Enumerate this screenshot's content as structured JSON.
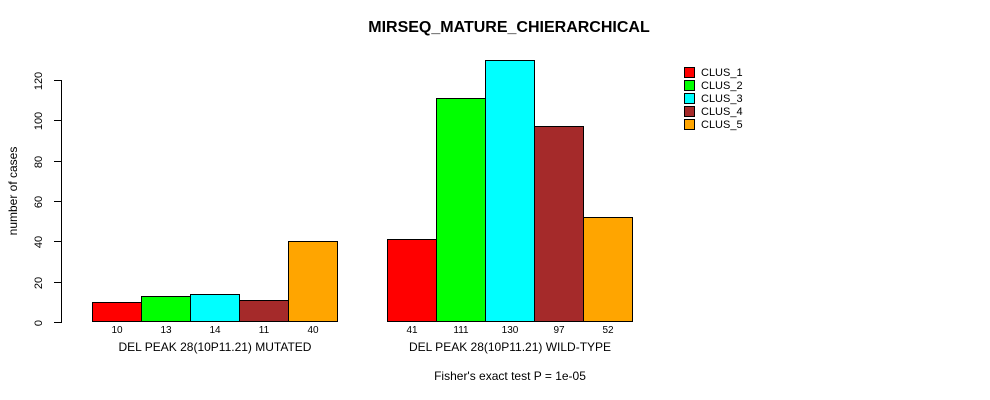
{
  "chart_data": {
    "type": "bar",
    "title": "MIRSEQ_MATURE_CHIERARCHICAL",
    "xlabel": "",
    "ylabel": "number of cases",
    "ylim": [
      0,
      130
    ],
    "yticks": [
      0,
      20,
      40,
      60,
      80,
      100,
      120
    ],
    "grid": false,
    "legend_position": "top-right",
    "bar_border_color": "#000000",
    "categories": [
      "DEL PEAK 28(10P11.21) MUTATED",
      "DEL PEAK 28(10P11.21) WILD-TYPE"
    ],
    "series": [
      {
        "name": "CLUS_1",
        "color": "#FF0000",
        "values": [
          10,
          41
        ]
      },
      {
        "name": "CLUS_2",
        "color": "#00FF00",
        "values": [
          13,
          111
        ]
      },
      {
        "name": "CLUS_3",
        "color": "#00FFFF",
        "values": [
          14,
          130
        ]
      },
      {
        "name": "CLUS_4",
        "color": "#A52A2A",
        "values": [
          11,
          97
        ]
      },
      {
        "name": "CLUS_5",
        "color": "#FFA500",
        "values": [
          40,
          52
        ]
      }
    ],
    "show_bar_values": true,
    "footnote": "Fisher's exact test P = 1e-05"
  }
}
